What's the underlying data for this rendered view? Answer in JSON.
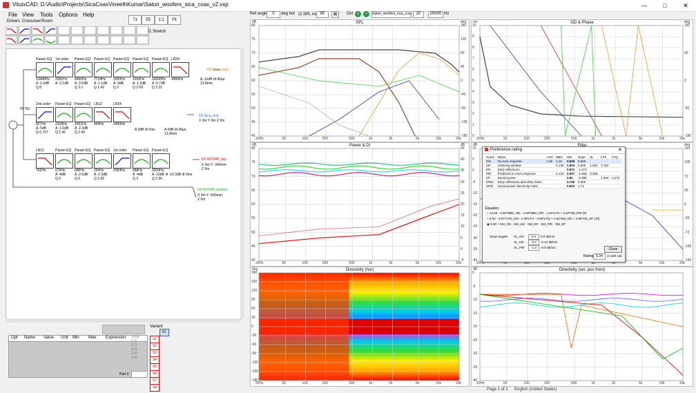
{
  "window": {
    "title": "VituixCAD: D:\\Audio\\Projects\\SicaCoaxVineethKumar\\Satori_woofers_sica_coax_v2.vxp",
    "minimize": "—",
    "maximize": "□",
    "close": "✕"
  },
  "menu": [
    "File",
    "View",
    "Tools",
    "Options",
    "Help"
  ],
  "tabs": [
    "Drivers",
    "Crossover",
    "Room"
  ],
  "toolbar_small": [
    "71",
    "55",
    "1:1",
    "Fit"
  ],
  "stretch_label": "Stretch",
  "ref_angle": {
    "label": "Ref angle",
    "value": "0",
    "unit": "deg hor"
  },
  "spl_max": {
    "label": "SPL max",
    "value": "80"
  },
  "ovl": {
    "label": "Ovl",
    "driver": "Satori_woofers_sica_coa",
    "f1": "20",
    "f2": "20000",
    "unit": "Hz"
  },
  "plots": {
    "spl": {
      "title": "SPL",
      "ylabel": "dB",
      "yr": "deg",
      "y": [
        "80",
        "75",
        "70",
        "65",
        "60",
        "55",
        "50",
        "45",
        "40"
      ],
      "yr_ticks": [
        "180",
        "135",
        "90",
        "45",
        "0",
        "-45",
        "-90",
        "-135",
        "-180"
      ]
    },
    "gd": {
      "title": "GD & Phase",
      "ylabel": "ms",
      "yr": "deg",
      "y": [
        "10",
        "9",
        "8",
        "7",
        "6",
        "5",
        "4",
        "3",
        "2",
        "1",
        "0"
      ],
      "yr_ticks": [
        "180",
        "90",
        "0",
        "-90",
        "-180"
      ]
    },
    "pdi": {
      "title": "Power & DI",
      "ylabel": "dB",
      "yr": "dB",
      "y": [
        "80",
        "75",
        "70",
        "65",
        "60",
        "55",
        "50",
        "45",
        "40"
      ],
      "yr_ticks": [
        "45",
        "40",
        "35",
        "30",
        "25",
        "20",
        "15",
        "10",
        "5",
        "0",
        "-5"
      ]
    },
    "filter": {
      "title": "Filter",
      "ylabel": "dB",
      "yr": "deg",
      "y": [
        "10",
        "5",
        "0",
        "-5",
        "-10",
        "-15",
        "-20",
        "-25",
        "-30",
        "-35",
        "-40"
      ],
      "yr_ticks": [
        "144",
        "108",
        "72",
        "36",
        "0",
        "-36",
        "-72",
        "-108",
        "-144"
      ]
    },
    "dirh": {
      "title": "Directivity (hor)",
      "ylabel": "deg",
      "y": [
        "180",
        "150",
        "120",
        "90",
        "60",
        "30",
        "0",
        "-30",
        "-60",
        "-90",
        "-120",
        "-150",
        "-180"
      ]
    },
    "dirv": {
      "title": "Directivity (ver, pos front)",
      "ylabel": "dB",
      "y": [
        "0",
        "-5",
        "-10",
        "-15",
        "-20",
        "-25",
        "-30",
        "-35",
        "-40"
      ]
    }
  },
  "xticks": [
    "20Hz",
    "50",
    "100",
    "200",
    "500",
    "1k",
    "2k",
    "5k",
    "10k",
    "20k"
  ],
  "pref": {
    "title": "Preference rating",
    "headers": [
      "Curve",
      "Name",
      "AAD",
      "NBD",
      "SM",
      "slope",
      "SL",
      "LFX",
      "LFQ"
    ],
    "rows": [
      [
        "ON",
        "On-axis response",
        "1.06",
        "0.16",
        "0.835",
        "0.669",
        "",
        "",
        ""
      ],
      [
        "LW",
        "Listening window",
        "",
        "0.136",
        "0.804",
        "0.506",
        "1.533",
        "1.762",
        ""
      ],
      [
        "ER",
        "Early reflections",
        "",
        "",
        "0.872",
        "-1.474",
        "",
        "",
        ""
      ],
      [
        "PIR",
        "Predicted in-room response",
        "",
        "0.143",
        "0.907",
        "-1.669",
        "0.369",
        "",
        ""
      ],
      [
        "SP",
        "Sound power",
        "",
        "",
        "0.81",
        "-2.399",
        "",
        "1.564",
        "1.272"
      ],
      [
        "ERDI",
        "Early reflections directivity index",
        "",
        "",
        "0.705",
        "0.805",
        "",
        "",
        ""
      ],
      [
        "SPDI",
        "Sound power directivity index",
        "",
        "",
        "0.603",
        "1.73",
        "",
        "",
        ""
      ]
    ],
    "equation_label": "Equation",
    "eq1": "12.69 - 2.49*NBD_ON - 2.99*NBD_PIR - 4.31*LFX + 2.32*SM_PIR (9)",
    "eq2": "8.04 - 6.57*AAD_ON - 1.38*LFX - 0.86*LFQ + 4.52*SM_ON + 3.58*SM_SP (10)",
    "eq3_prefix": "5.00",
    "slope_label": "Slope targets",
    "slopes": [
      {
        "name": "SL_ON",
        "v": "0.0",
        "hint": "0.0 dB/oct"
      },
      {
        "name": "SL_LW",
        "v": "-0.2",
        "hint": "-0.21 dB/oct"
      },
      {
        "name": "SL_PIR",
        "v": "-1.3",
        "hint": "-0.9 dB/oct"
      }
    ],
    "rating_label": "Rating",
    "rating": "5.34",
    "with_sub": "with sub",
    "close": "Close"
  },
  "crossover": {
    "row1": [
      {
        "type": "Param EQ",
        "f": "13440Hz",
        "a": "A -1.9dB",
        "q": "Q 8"
      },
      {
        "type": "1st order",
        "f": "2381Hz",
        "a": "A -2.1dB",
        "q": ""
      },
      {
        "type": "Param EQ",
        "f": "8460Hz",
        "a": "A -2.6dB",
        "q": "Q 3.1"
      },
      {
        "type": "Param EQ",
        "f": "7718Hz",
        "a": "A -1.1dB",
        "q": "Q 1.42"
      },
      {
        "type": "Param EQ",
        "f": "1000Hz",
        "a": "A -3dB",
        "q": "Q 2"
      },
      {
        "type": "Param EQ",
        "f": "3160Hz",
        "a": "A -1.2dB",
        "q": "Q 3.69"
      },
      {
        "type": "Param EQ",
        "f": "16000Hz",
        "a": "A -0.7dB",
        "q": "Q 2.31"
      },
      {
        "type": "LR24",
        "f": "3466Hz",
        "a": "",
        "q": ""
      }
    ],
    "row1_gain": "A -11dB dt 40µs 13.8mm",
    "row1_driver": "D4 Sica_coax",
    "row2": [
      {
        "type": "2nd order",
        "f": "827Hz",
        "a": "A -5dB",
        "q": "Q 0.707"
      },
      {
        "type": "Param EQ",
        "f": "2100Hz",
        "a": "A -1.6dB",
        "q": "Q 1.42"
      },
      {
        "type": "Param EQ",
        "f": "1551Hz",
        "a": "A -2.3dB",
        "q": "Q 2.43"
      },
      {
        "type": "LR12",
        "f": "849Hz",
        "a": "",
        "q": ""
      },
      {
        "type": "LR24",
        "f": "3466Hz",
        "a": "",
        "q": ""
      }
    ],
    "row2_gain": "A 0dB dt 0ms",
    "row2_gain2": "A 0dB dt 40µs 13.8mm",
    "row2_driver": "D5 Sica_mid",
    "row3": [
      {
        "type": "LR12",
        "f": "762Hz",
        "a": "",
        "q": ""
      },
      {
        "type": "Param EQ",
        "f": "670Hz",
        "a": "A -4dB",
        "q": "Q 6"
      },
      {
        "type": "Param EQ",
        "f": "680Hz",
        "a": "A -2.6dB",
        "q": "Q 6"
      },
      {
        "type": "Param EQ",
        "f": "294Hz",
        "a": "A -2.3dB",
        "q": "Q 2.65"
      },
      {
        "type": "1st order",
        "f": "2083Hz",
        "a": "",
        "q": ""
      },
      {
        "type": "Param EQ",
        "f": "588Hz",
        "a": "A -4dB",
        "q": "Q 3"
      },
      {
        "type": "Param EQ",
        "f": "3000Hz",
        "a": "A -10dB",
        "q": "Q 2.96"
      }
    ],
    "row3_gain": "A -10.3dB dt 0ms",
    "row3_driver": "D2 WO24P_top",
    "row3_pos": "X 0m Y -340mm Z 0m",
    "row4_driver": "D3 WO24P_bottom",
    "row4_pos": "X 0m Y -640mm Z 0m",
    "driver_pos": "X 0m Y 0m Z 0m",
    "src_label": "0V 0Ω"
  },
  "opt_table": {
    "headers": [
      "Opt",
      "Name",
      "Value",
      "Unit",
      "Min",
      "Max",
      "Expression"
    ]
  },
  "snap": {
    "label": "Snap",
    "opts": [
      "5 %",
      "E12",
      "E24",
      "E48",
      "E96"
    ]
  },
  "part_label": "Part #",
  "variant": {
    "label": "Variant",
    "items": [
      "S1",
      "S2",
      "S3",
      "S4",
      "S5",
      "S6",
      "S7",
      "S8"
    ],
    "sel": "R1"
  },
  "status": {
    "page": "Page 1 of 1",
    "lang": "English (United States)"
  },
  "colors": {
    "accent": "#1e6fd9",
    "red": "#d00",
    "green": "#2a2"
  }
}
